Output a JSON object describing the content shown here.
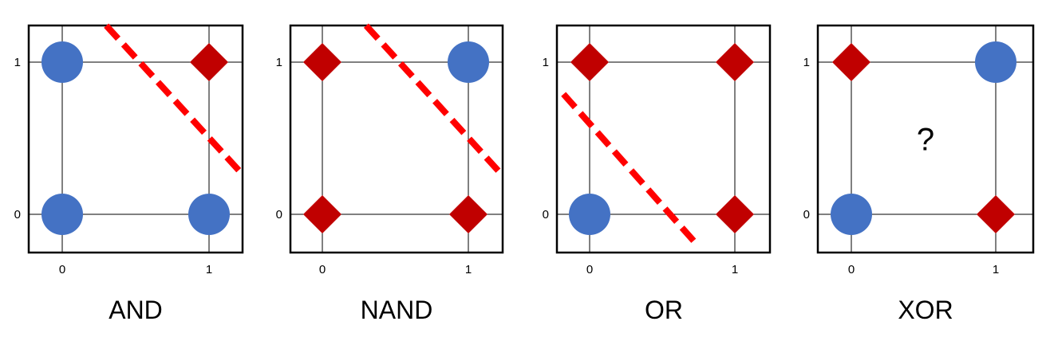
{
  "colors": {
    "class_a": "#4472C4",
    "class_b": "#C00000",
    "boundary": "#FF0000",
    "frame": "#000000"
  },
  "panels": [
    {
      "title": "AND",
      "ticks": {
        "x0": "0",
        "x1": "1",
        "y0": "0",
        "y1": "1"
      },
      "points": [
        {
          "x": 0,
          "y": 1,
          "marker": "circle"
        },
        {
          "x": 1,
          "y": 1,
          "marker": "diamond"
        },
        {
          "x": 0,
          "y": 0,
          "marker": "circle"
        },
        {
          "x": 1,
          "y": 0,
          "marker": "circle"
        }
      ],
      "boundary": {
        "from": [
          0.3,
          1.24
        ],
        "to": [
          1.23,
          0.26
        ]
      },
      "unknown": ""
    },
    {
      "title": "NAND",
      "ticks": {
        "x0": "0",
        "x1": "1",
        "y0": "0",
        "y1": "1"
      },
      "points": [
        {
          "x": 0,
          "y": 1,
          "marker": "diamond"
        },
        {
          "x": 1,
          "y": 1,
          "marker": "circle"
        },
        {
          "x": 0,
          "y": 0,
          "marker": "diamond"
        },
        {
          "x": 1,
          "y": 0,
          "marker": "diamond"
        }
      ],
      "boundary": {
        "from": [
          0.3,
          1.24
        ],
        "to": [
          1.23,
          0.26
        ]
      },
      "unknown": ""
    },
    {
      "title": "OR",
      "ticks": {
        "x0": "0",
        "x1": "1",
        "y0": "0",
        "y1": "1"
      },
      "points": [
        {
          "x": 0,
          "y": 1,
          "marker": "diamond"
        },
        {
          "x": 1,
          "y": 1,
          "marker": "diamond"
        },
        {
          "x": 0,
          "y": 0,
          "marker": "circle"
        },
        {
          "x": 1,
          "y": 0,
          "marker": "diamond"
        }
      ],
      "boundary": {
        "from": [
          -0.18,
          0.79
        ],
        "to": [
          0.74,
          -0.2
        ]
      },
      "unknown": ""
    },
    {
      "title": "XOR",
      "ticks": {
        "x0": "0",
        "x1": "1",
        "y0": "0",
        "y1": "1"
      },
      "points": [
        {
          "x": 0,
          "y": 1,
          "marker": "diamond"
        },
        {
          "x": 1,
          "y": 1,
          "marker": "circle"
        },
        {
          "x": 0,
          "y": 0,
          "marker": "circle"
        },
        {
          "x": 1,
          "y": 0,
          "marker": "diamond"
        }
      ],
      "boundary": null,
      "unknown": "?"
    }
  ]
}
